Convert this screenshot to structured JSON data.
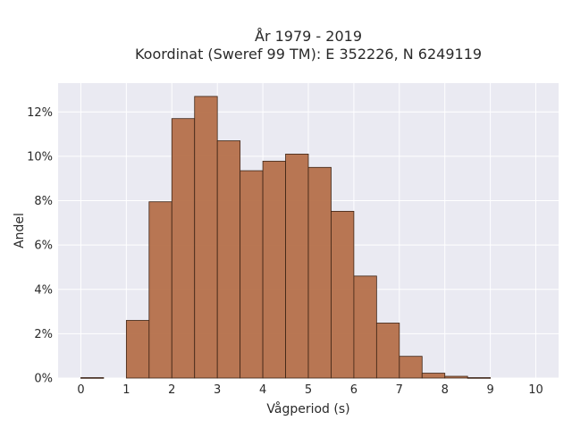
{
  "chart_data": {
    "type": "bar",
    "title_line1": "År 1979 - 2019",
    "title_line2": "Koordinat (Sweref 99 TM): E 352226, N 6249119",
    "xlabel": "Vågperiod (s)",
    "ylabel": "Andel",
    "bin_width": 0.5,
    "bins": [
      {
        "start": 0.0,
        "value": 0.0002
      },
      {
        "start": 0.5,
        "value": 0.0
      },
      {
        "start": 1.0,
        "value": 0.026
      },
      {
        "start": 1.5,
        "value": 0.0795
      },
      {
        "start": 2.0,
        "value": 0.117
      },
      {
        "start": 2.5,
        "value": 0.127
      },
      {
        "start": 3.0,
        "value": 0.107
      },
      {
        "start": 3.5,
        "value": 0.0935
      },
      {
        "start": 4.0,
        "value": 0.0978
      },
      {
        "start": 4.5,
        "value": 0.101
      },
      {
        "start": 5.0,
        "value": 0.095
      },
      {
        "start": 5.5,
        "value": 0.0752
      },
      {
        "start": 6.0,
        "value": 0.046
      },
      {
        "start": 6.5,
        "value": 0.0248
      },
      {
        "start": 7.0,
        "value": 0.0098
      },
      {
        "start": 7.5,
        "value": 0.0022
      },
      {
        "start": 8.0,
        "value": 0.0008
      },
      {
        "start": 8.5,
        "value": 0.0002
      }
    ],
    "xlim": [
      -0.5,
      10.5
    ],
    "ylim": [
      0,
      0.133
    ],
    "x_ticks": [
      "0",
      "1",
      "2",
      "3",
      "4",
      "5",
      "6",
      "7",
      "8",
      "9",
      "10"
    ],
    "y_ticks": [
      {
        "value": 0,
        "label": "0%"
      },
      {
        "value": 0.02,
        "label": "2%"
      },
      {
        "value": 0.04,
        "label": "4%"
      },
      {
        "value": 0.06,
        "label": "6%"
      },
      {
        "value": 0.08,
        "label": "8%"
      },
      {
        "value": 0.1,
        "label": "10%"
      },
      {
        "value": 0.12,
        "label": "12%"
      }
    ],
    "grid": true,
    "bar_color": "#b5704a",
    "bar_edge_color": "#3d2415",
    "plot_bg_color": "#eaeaf2"
  }
}
